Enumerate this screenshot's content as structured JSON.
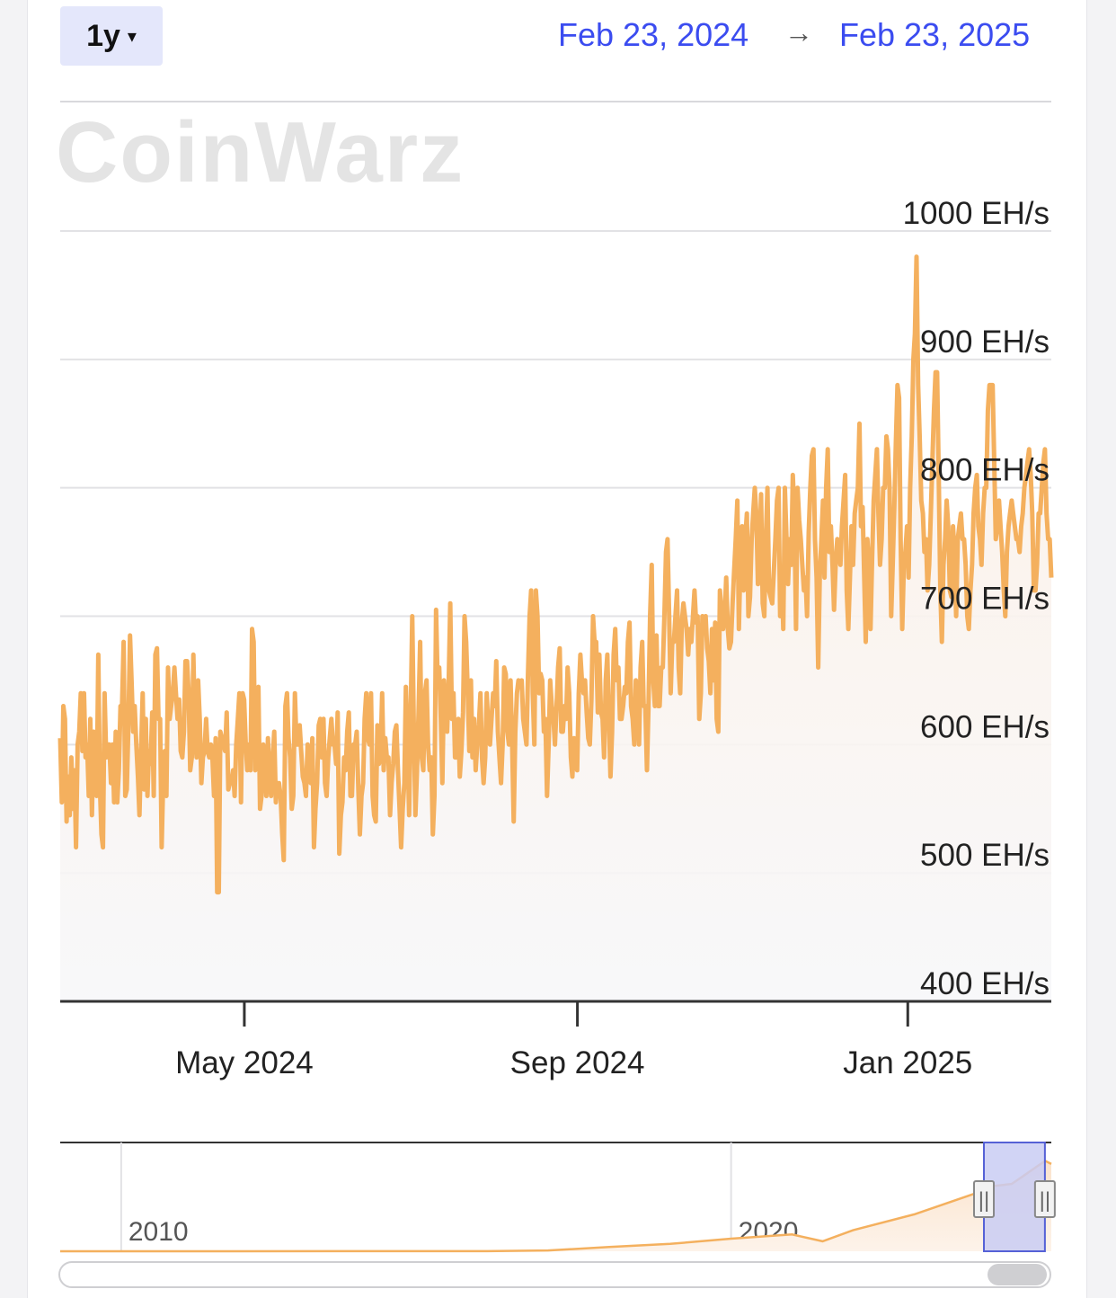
{
  "controls": {
    "range_label": "1y",
    "range_caret": "▾",
    "start_date": "Feb 23, 2024",
    "arrow": "→",
    "end_date": "Feb 23, 2025"
  },
  "watermark": "CoinWarz",
  "colors": {
    "line": "#f4b05e",
    "accent": "#3b4cf0",
    "selection": "#c9ccf3"
  },
  "chart_data": {
    "type": "line",
    "x_range": [
      "2024-02-23",
      "2025-02-23"
    ],
    "ylim": [
      400,
      1000
    ],
    "y_unit": "EH/s",
    "y_ticks": [
      {
        "value": 1000,
        "label": "1000 EH/s"
      },
      {
        "value": 900,
        "label": "900 EH/s"
      },
      {
        "value": 800,
        "label": "800 EH/s"
      },
      {
        "value": 700,
        "label": "700 EH/s"
      },
      {
        "value": 600,
        "label": "600 EH/s"
      },
      {
        "value": 500,
        "label": "500 EH/s"
      },
      {
        "value": 400,
        "label": "400 EH/s"
      }
    ],
    "x_ticks": [
      {
        "date": "2024-05-01",
        "label": "May 2024"
      },
      {
        "date": "2024-09-01",
        "label": "Sep 2024"
      },
      {
        "date": "2025-01-01",
        "label": "Jan 2025"
      }
    ],
    "grid": true,
    "series": [
      {
        "values": [
          605,
          555,
          630,
          620,
          540,
          575,
          545,
          590,
          550,
          580,
          520,
          600,
          610,
          640,
          595,
          640,
          590,
          600,
          560,
          620,
          545,
          610,
          600,
          560,
          670,
          570,
          530,
          520,
          640,
          590,
          600,
          600,
          570,
          600,
          555,
          610,
          555,
          580,
          630,
          630,
          680,
          560,
          565,
          615,
          685,
          650,
          610,
          630,
          600,
          575,
          545,
          595,
          640,
          565,
          620,
          560,
          595,
          585,
          625,
          560,
          670,
          675,
          620,
          620,
          520,
          575,
          595,
          560,
          660,
          620,
          630,
          640,
          660,
          640,
          620,
          635,
          595,
          590,
          610,
          665,
          665,
          640,
          580,
          590,
          670,
          610,
          590,
          650,
          620,
          570,
          590,
          595,
          620,
          595,
          590,
          600,
          590,
          560,
          605,
          485,
          485,
          610,
          605,
          600,
          595,
          625,
          565,
          570,
          570,
          580,
          560,
          600,
          620,
          640,
          555,
          640,
          635,
          600,
          580,
          600,
          580,
          690,
          680,
          580,
          620,
          645,
          550,
          560,
          600,
          590,
          560,
          605,
          575,
          560,
          590,
          610,
          555,
          570,
          570,
          560,
          530,
          510,
          630,
          640,
          605,
          590,
          550,
          560,
          640,
          600,
          600,
          615,
          595,
          575,
          570,
          560,
          600,
          580,
          570,
          605,
          520,
          550,
          570,
          615,
          620,
          590,
          620,
          570,
          560,
          590,
          605,
          620,
          600,
          600,
          585,
          625,
          515,
          545,
          555,
          590,
          580,
          610,
          625,
          560,
          560,
          600,
          600,
          610,
          565,
          530,
          560,
          570,
          620,
          640,
          605,
          600,
          640,
          560,
          545,
          540,
          615,
          585,
          590,
          640,
          580,
          605,
          590,
          590,
          545,
          570,
          585,
          610,
          615,
          580,
          550,
          520,
          550,
          570,
          645,
          600,
          545,
          620,
          700,
          610,
          545,
          580,
          625,
          680,
          590,
          580,
          640,
          650,
          600,
          580,
          590,
          530,
          560,
          705,
          650,
          660,
          620,
          570,
          650,
          620,
          610,
          650,
          710,
          620,
          640,
          590,
          590,
          620,
          575,
          595,
          625,
          700,
          680,
          640,
          595,
          650,
          590,
          620,
          580,
          600,
          615,
          640,
          590,
          570,
          590,
          640,
          610,
          600,
          620,
          640,
          630,
          665,
          610,
          590,
          570,
          600,
          660,
          655,
          610,
          600,
          650,
          600,
          540,
          610,
          640,
          650,
          645,
          650,
          620,
          610,
          600,
          655,
          700,
          720,
          640,
          600,
          720,
          700,
          640,
          655,
          650,
          610,
          620,
          560,
          600,
          650,
          630,
          620,
          600,
          630,
          660,
          675,
          610,
          610,
          630,
          620,
          660,
          640,
          590,
          575,
          605,
          590,
          580,
          640,
          670,
          650,
          640,
          650,
          625,
          605,
          600,
          635,
          700,
          680,
          680,
          625,
          670,
          625,
          620,
          590,
          650,
          670,
          620,
          575,
          610,
          670,
          690,
          650,
          660,
          620,
          620,
          630,
          645,
          640,
          680,
          695,
          630,
          620,
          600,
          650,
          640,
          600,
          660,
          680,
          630,
          630,
          580,
          630,
          700,
          740,
          650,
          630,
          685,
          630,
          630,
          660,
          660,
          700,
          750,
          760,
          700,
          640,
          680,
          680,
          700,
          720,
          660,
          640,
          695,
          710,
          700,
          690,
          670,
          690,
          680,
          700,
          720,
          695,
          700,
          620,
          640,
          700,
          690,
          700,
          675,
          665,
          640,
          690,
          650,
          695,
          620,
          610,
          720,
          705,
          690,
          700,
          730,
          690,
          675,
          680,
          710,
          735,
          760,
          790,
          690,
          745,
          770,
          720,
          760,
          780,
          700,
          715,
          760,
          780,
          800,
          780,
          725,
          745,
          795,
          710,
          700,
          760,
          800,
          720,
          715,
          710,
          735,
          760,
          790,
          800,
          700,
          735,
          690,
          800,
          760,
          725,
          760,
          740,
          810,
          780,
          690,
          800,
          775,
          760,
          740,
          720,
          730,
          700,
          765,
          800,
          825,
          830,
          760,
          730,
          660,
          730,
          760,
          790,
          730,
          800,
          830,
          750,
          770,
          740,
          705,
          740,
          760,
          750,
          740,
          770,
          790,
          810,
          720,
          690,
          730,
          770,
          740,
          780,
          790,
          800,
          850,
          770,
          785,
          730,
          680,
          760,
          740,
          690,
          745,
          790,
          810,
          830,
          780,
          740,
          760,
          800,
          800,
          840,
          830,
          800,
          700,
          740,
          785,
          835,
          880,
          870,
          760,
          690,
          740,
          750,
          770,
          730,
          800,
          840,
          900,
          920,
          980,
          880,
          840,
          790,
          780,
          750,
          760,
          720,
          740,
          780,
          820,
          860,
          890,
          890,
          810,
          720,
          680,
          740,
          760,
          790,
          770,
          720,
          715,
          770,
          750,
          700,
          760,
          770,
          780,
          760,
          760,
          740,
          700,
          690,
          720,
          740,
          780,
          800,
          810,
          770,
          760,
          740,
          780,
          800,
          800,
          860,
          880,
          880,
          880,
          820,
          760,
          770,
          790,
          770,
          750,
          720,
          700,
          750,
          770,
          780,
          790,
          780,
          770,
          760,
          760,
          750,
          770,
          780,
          800,
          810,
          820,
          830,
          810,
          780,
          720,
          720,
          740,
          780,
          780,
          800,
          820,
          830,
          780,
          760,
          760,
          730
        ]
      }
    ]
  },
  "navigator": {
    "labels": [
      {
        "year": 2010,
        "label": "2010"
      },
      {
        "year": 2020,
        "label": "2020"
      }
    ],
    "year_range": [
      2009,
      2025.25
    ],
    "selection": [
      "2024-02-23",
      "2025-02-23"
    ],
    "handle_glyph": "||"
  }
}
